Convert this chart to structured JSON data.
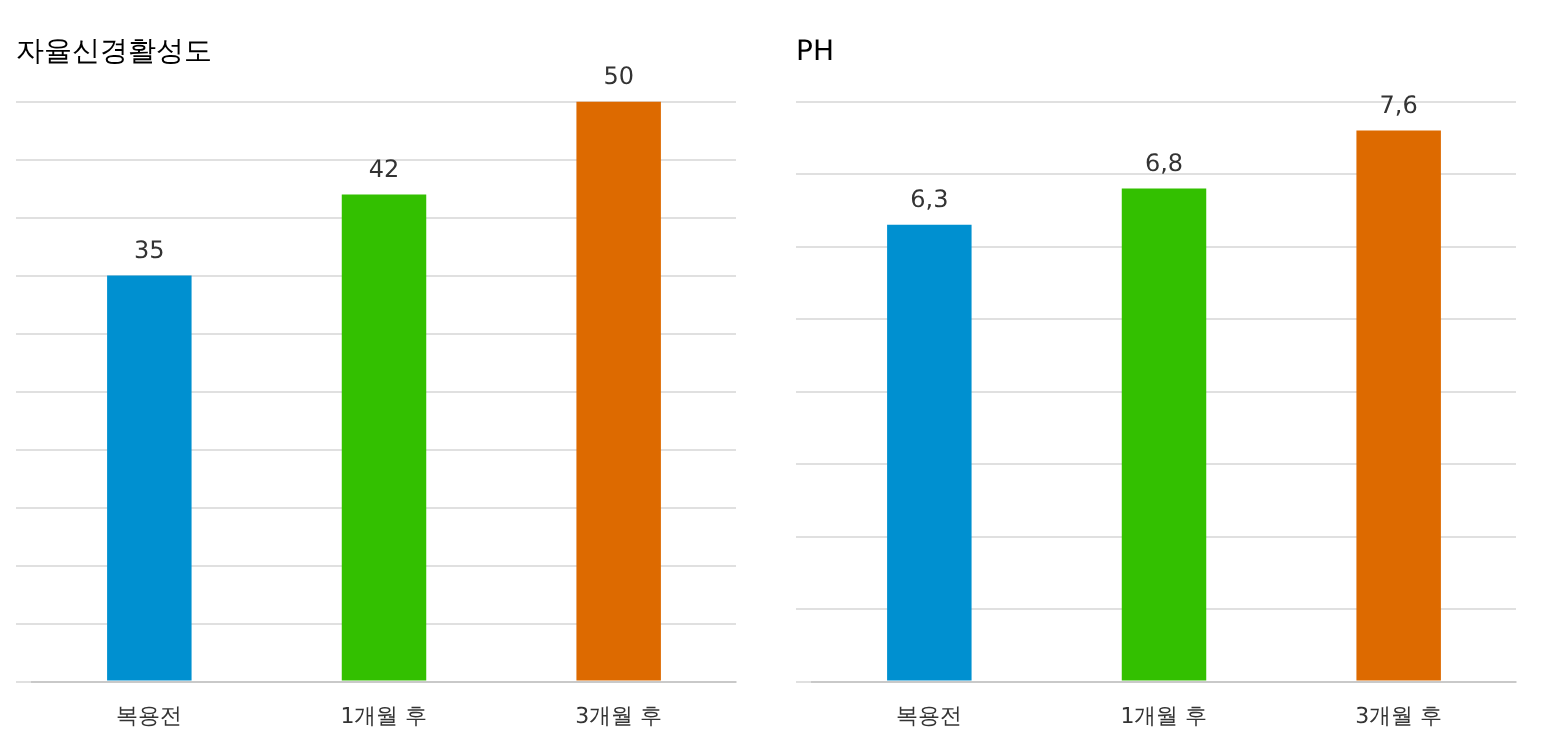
{
  "chart_data": [
    {
      "type": "bar",
      "title": "자율신경활성도",
      "categories": [
        "복용전",
        "1개월 후",
        "3개월 후"
      ],
      "values": [
        35,
        42,
        50
      ],
      "colors": [
        "#0090d0",
        "#33c000",
        "#dd6a00"
      ],
      "data_labels": true,
      "grid": "y",
      "tick_labels": "x",
      "legend": false
    },
    {
      "type": "bar",
      "title": "PH",
      "categories": [
        "복용전",
        "1개월 후",
        "3개월 후"
      ],
      "values": [
        6.3,
        6.8,
        7.6
      ],
      "value_labels": [
        "6,3",
        "6,8",
        "7,6"
      ],
      "colors": [
        "#0090d0",
        "#33c000",
        "#dd6a00"
      ],
      "grid": "y",
      "tick_labels": "x",
      "legend": false
    }
  ]
}
